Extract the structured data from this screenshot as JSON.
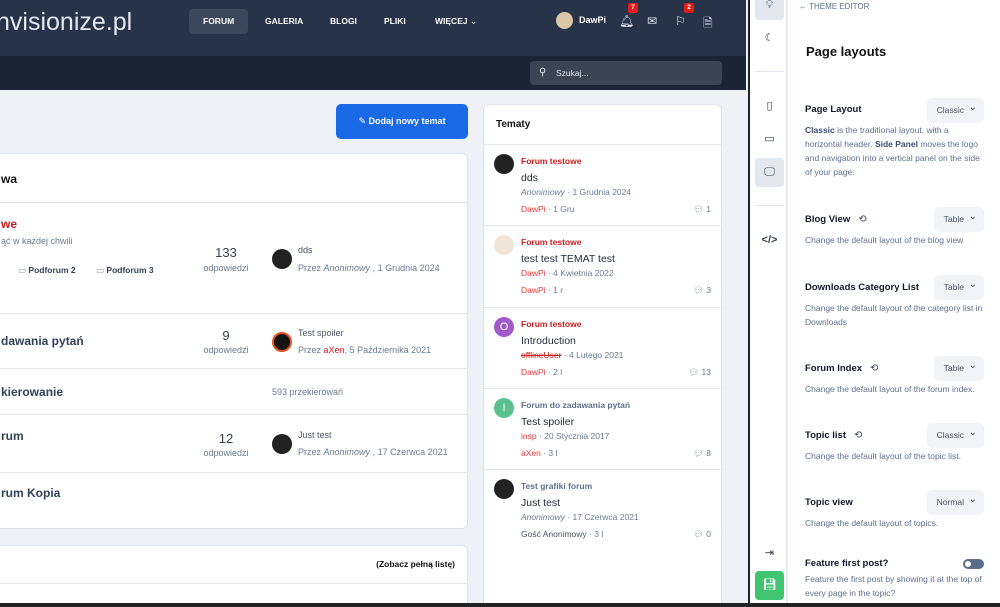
{
  "header": {
    "logo": "nvisionize.pl",
    "nav": [
      {
        "label": "FORUM",
        "active": true
      },
      {
        "label": "GALERIA"
      },
      {
        "label": "BLOGI"
      },
      {
        "label": "PLIKI"
      },
      {
        "label": "WIĘCEJ ⌄"
      }
    ],
    "user": "DawPi",
    "notifications": "7",
    "reports": "2",
    "search_placeholder": "Szukaj..."
  },
  "main": {
    "new_topic_button": "Dodaj nowy temat",
    "category_title": "wa",
    "forums": [
      {
        "title": "we",
        "desc": "ąć w każdej chwili",
        "subforums": [
          "Podforum 2",
          "Podforum 3"
        ],
        "count": "133",
        "count_label": "odpowiedzi",
        "last_title": "dds",
        "last_prefix": "Przez",
        "last_author": "Anonimowy",
        "last_date": ", 1 Grudnia 2024"
      },
      {
        "title": "dawania pytań",
        "count": "9",
        "count_label": "odpowiedzi",
        "last_title": "Test spoiler",
        "last_prefix": "Przez",
        "last_author": "aXen",
        "last_date": ", 5 Października 2021"
      },
      {
        "title": "kierowanie",
        "redirects": "593 przekierowań"
      },
      {
        "title": "rum",
        "count": "12",
        "count_label": "odpowiedzi",
        "last_title": "Just test",
        "last_prefix": "Przez",
        "last_author": "Anonimowy",
        "last_date": ", 17 Czerwca 2021"
      },
      {
        "title": "rum Kopia"
      }
    ],
    "see_full_list": "(Zobacz pełną listę)"
  },
  "topics": {
    "title": "Tematy",
    "items": [
      {
        "forum": "Forum testowe",
        "title": "dds",
        "author": "Anonimowy",
        "date": "· 1 Grudnia 2024",
        "last": "DawPi",
        "ago": "· 1 Gru",
        "replies": "1",
        "avatar": "anon"
      },
      {
        "forum": "Forum testowe",
        "title": "test test TEMAT test",
        "author": "DawPi",
        "date": "· 4 Kwietnia 2022",
        "last": "DawPi",
        "ago": "· 1 r",
        "replies": "3",
        "avatar": "dawpi"
      },
      {
        "forum": "Forum testowe",
        "title": "Introduction",
        "author": "offlineUser",
        "date": "· 4 Lutego 2021",
        "last": "DawPi",
        "ago": "· 2 l",
        "replies": "13",
        "avatar": "O",
        "avatar_color": "#a259c9"
      },
      {
        "forum": "Forum do zadawania pytań",
        "title": "Test spoiler",
        "author": "insp",
        "date": "· 20 Stycznia 2017",
        "last": "aXen",
        "ago": "· 3 l",
        "replies": "8",
        "avatar": "I",
        "avatar_color": "#5cc08f"
      },
      {
        "forum": "Test grafiki forum",
        "title": "Just test",
        "author": "Anonimowy",
        "date": "· 17 Czerwca 2021",
        "last": "Gość Anonimowy",
        "ago": "· 3 l",
        "replies": "0",
        "avatar": "anon"
      }
    ]
  },
  "theme_editor": {
    "back": "← THEME EDITOR",
    "title": "Page layouts",
    "page_layout": {
      "label": "Page Layout",
      "value": "Classic",
      "desc_b1": "Classic",
      "desc_1": " is the traditional layout, with a horizontal header. ",
      "desc_b2": "Side Panel",
      "desc_2": " moves the logo and navigation into a vertical panel on the side of your page."
    },
    "settings": [
      {
        "label": "Blog View",
        "value": "Table",
        "desc": "Change the default layout of the blog view",
        "history": true
      },
      {
        "label": "Downloads Category List",
        "value": "Table",
        "desc": "Change the default layout of the category list in Downloads"
      },
      {
        "label": "Forum Index",
        "value": "Table",
        "desc": "Change the default layout of the forum index.",
        "history": true
      },
      {
        "label": "Topic list",
        "value": "Classic",
        "desc": "Change the default layout of the topic list.",
        "history": true
      },
      {
        "label": "Topic view",
        "value": "Normal",
        "desc": "Change the default layout of topics."
      }
    ],
    "feature_first_post": {
      "label": "Feature first post?",
      "desc": "Feature the first post by showing it at the top of every page in the topic?",
      "enabled": false
    }
  },
  "colors": {
    "accent": "#1a6ae8",
    "header": "#263349",
    "save": "#3fc46f",
    "link_red": "#c81e1e"
  }
}
